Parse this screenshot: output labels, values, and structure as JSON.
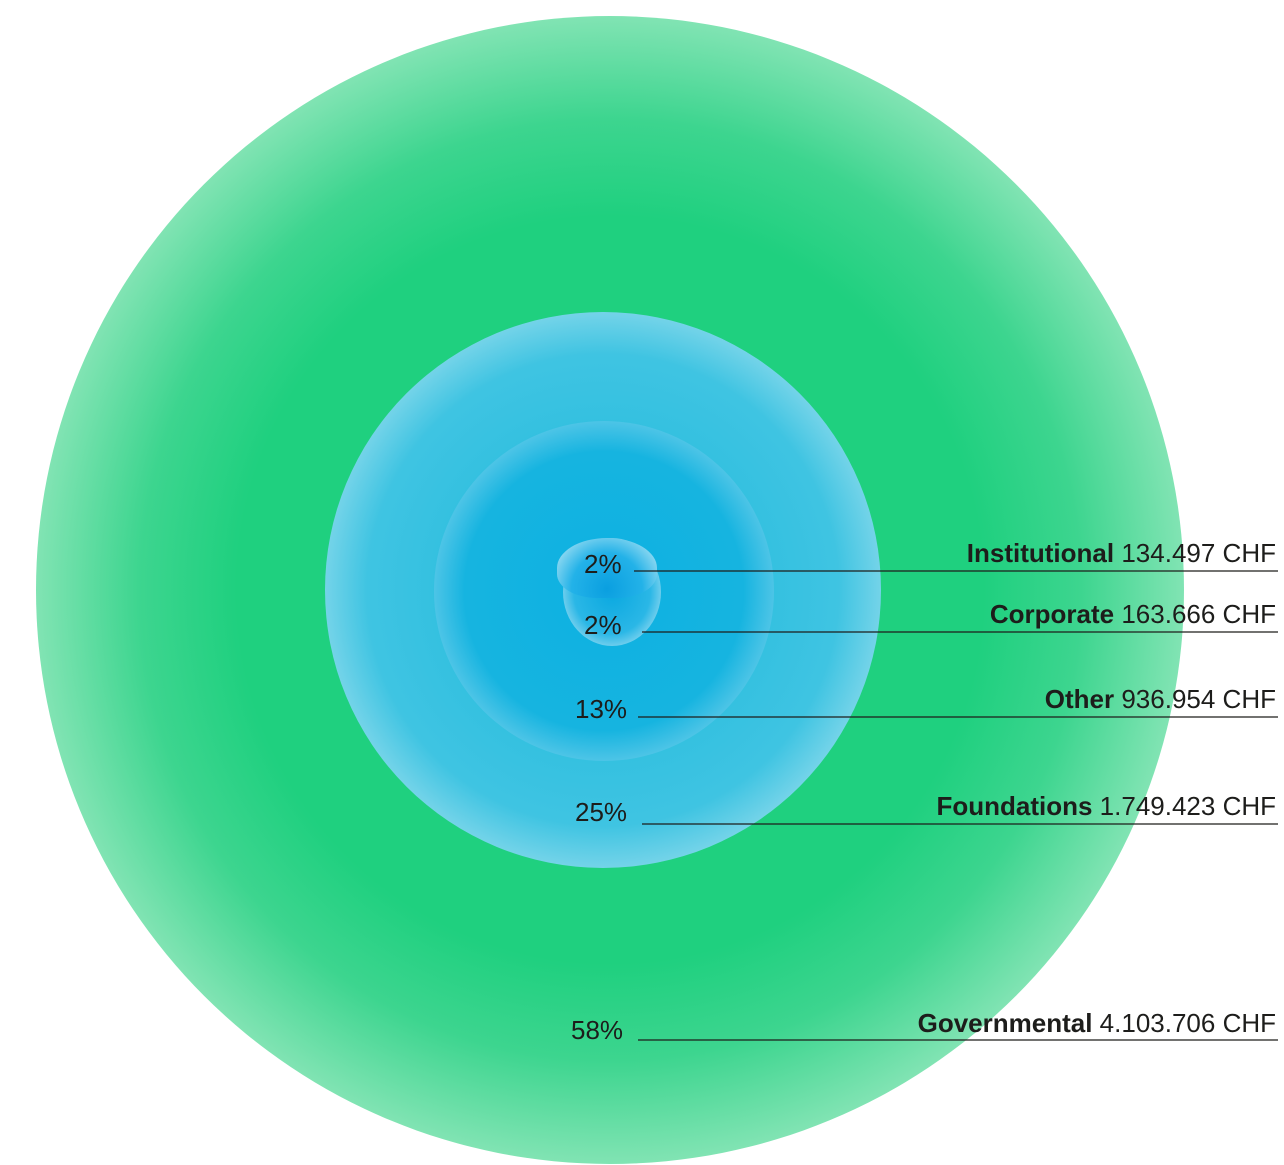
{
  "chart_data": {
    "type": "concentric-circles",
    "unit": "CHF",
    "categories": [
      "Institutional",
      "Corporate",
      "Other",
      "Foundations",
      "Governmental"
    ],
    "values": [
      134497,
      163666,
      936954,
      1749423,
      4103706
    ],
    "value_labels": [
      "134.497 CHF",
      "163.666 CHF",
      "936.954 CHF",
      "1.749.423 CHF",
      "4.103.706 CHF"
    ],
    "percent_labels": [
      "2%",
      "2%",
      "13%",
      "25%",
      "58%"
    ],
    "percents": [
      2,
      2,
      13,
      25,
      58
    ],
    "colors": {
      "governmental": "#1fd07f",
      "foundations": "#3fc4e2",
      "other": "#16b4e0",
      "corporate": "#2ab7e6",
      "institutional": "#0a9fe0",
      "leader_line": "#1d1d1b"
    }
  }
}
